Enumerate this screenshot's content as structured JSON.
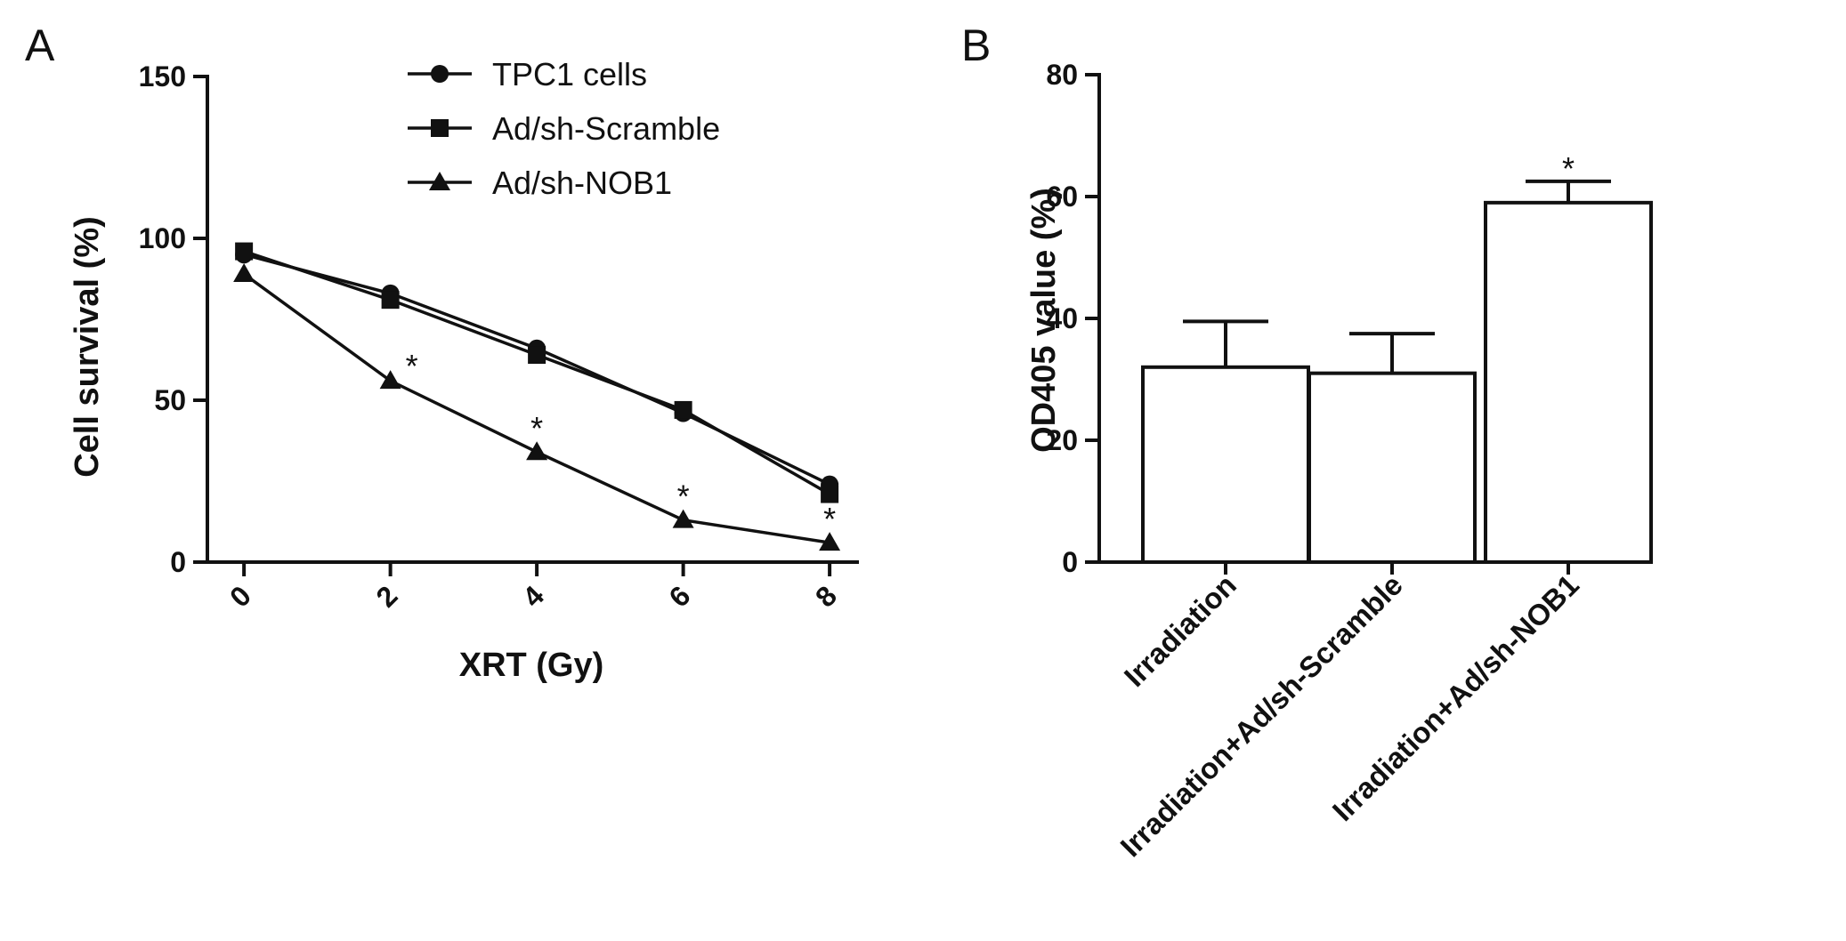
{
  "chart_data": [
    {
      "panel": "A",
      "type": "line",
      "xlabel": "XRT (Gy)",
      "ylabel": "Cell survival (%)",
      "x": [
        0,
        2,
        4,
        6,
        8
      ],
      "xticks": [
        "0",
        "2",
        "4",
        "6",
        "8"
      ],
      "yticks": [
        "0",
        "50",
        "100",
        "150"
      ],
      "ylim": [
        0,
        150
      ],
      "xlim": [
        -0.5,
        8.4
      ],
      "series": [
        {
          "name": "TPC1 cells",
          "marker": "circle",
          "values": [
            95,
            83,
            66,
            46,
            24
          ]
        },
        {
          "name": "Ad/sh-Scramble",
          "marker": "square",
          "values": [
            96,
            81,
            64,
            47,
            21
          ]
        },
        {
          "name": "Ad/sh-NOB1",
          "marker": "triangle",
          "values": [
            89,
            56,
            34,
            13,
            6
          ]
        }
      ],
      "annotations": [
        {
          "x": 2,
          "series": "Ad/sh-NOB1",
          "text": "*"
        },
        {
          "x": 4,
          "series": "Ad/sh-NOB1",
          "text": "*"
        },
        {
          "x": 6,
          "series": "Ad/sh-NOB1",
          "text": "*"
        },
        {
          "x": 8,
          "series": "Ad/sh-NOB1",
          "text": "*"
        }
      ],
      "legend_position": "top-center"
    },
    {
      "panel": "B",
      "type": "bar",
      "ylabel": "OD405 value (%)",
      "categories": [
        "Irradiation",
        "Irradiation+Ad/sh-Scramble",
        "Irradiation+Ad/sh-NOB1"
      ],
      "values": [
        32,
        31,
        59
      ],
      "errors": [
        7.5,
        6.5,
        3.5
      ],
      "yticks": [
        "0",
        "20",
        "40",
        "60",
        "80"
      ],
      "ylim": [
        0,
        80
      ],
      "annotations": [
        {
          "category": "Irradiation+Ad/sh-NOB1",
          "text": "*"
        }
      ]
    }
  ]
}
